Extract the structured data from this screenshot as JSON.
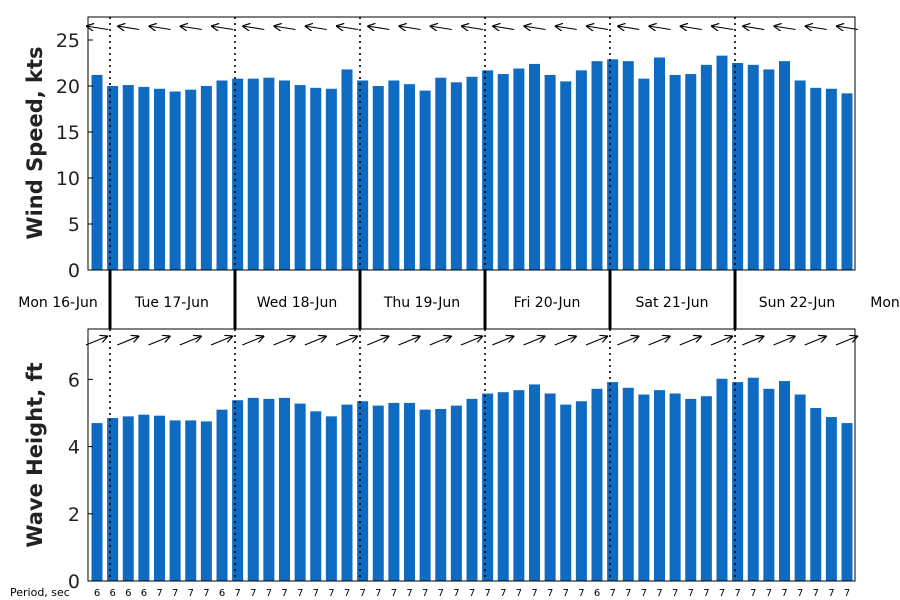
{
  "chart_data": [
    {
      "type": "bar",
      "ylabel": "Wind Speed, kts",
      "ylim": [
        0,
        27.5
      ],
      "yticks": [
        0,
        5,
        10,
        15,
        20,
        25
      ],
      "values": [
        21.2,
        20.0,
        20.1,
        19.9,
        19.7,
        19.4,
        19.6,
        20.0,
        20.6,
        20.8,
        20.8,
        20.9,
        20.6,
        20.1,
        19.8,
        19.7,
        21.8,
        20.6,
        20.0,
        20.6,
        20.2,
        19.5,
        20.9,
        20.4,
        21.0,
        21.7,
        21.3,
        21.9,
        22.4,
        21.2,
        20.5,
        21.7,
        22.7,
        22.9,
        22.7,
        20.8,
        23.1,
        21.2,
        21.3,
        22.3,
        23.3,
        22.5,
        22.3,
        21.8,
        22.7,
        20.6,
        19.8,
        19.7,
        19.2
      ],
      "color": "#0e6bc1",
      "grid": false,
      "wind_direction_arrows": true
    },
    {
      "type": "bar",
      "ylabel": "Wave Height, ft",
      "ylim": [
        0,
        7.5
      ],
      "yticks": [
        0,
        2,
        4,
        6
      ],
      "values": [
        4.7,
        4.85,
        4.9,
        4.95,
        4.92,
        4.78,
        4.78,
        4.75,
        5.1,
        5.38,
        5.45,
        5.42,
        5.45,
        5.28,
        5.05,
        4.9,
        5.25,
        5.35,
        5.22,
        5.3,
        5.3,
        5.1,
        5.12,
        5.22,
        5.42,
        5.58,
        5.62,
        5.68,
        5.85,
        5.58,
        5.25,
        5.35,
        5.72,
        5.92,
        5.75,
        5.55,
        5.68,
        5.58,
        5.42,
        5.5,
        6.02,
        5.92,
        6.05,
        5.72,
        5.95,
        5.55,
        5.15,
        4.88,
        4.7
      ],
      "color": "#0e6bc1",
      "grid": false,
      "wave_direction_arrows": true
    }
  ],
  "day_labels": [
    "Mon 16-Jun",
    "Tue 17-Jun",
    "Wed 18-Jun",
    "Thu 19-Jun",
    "Fri 20-Jun",
    "Sat 21-Jun",
    "Sun 22-Jun",
    "Mon"
  ],
  "period_label": "Period, sec",
  "periods": [
    6,
    6,
    6,
    6,
    7,
    7,
    7,
    7,
    6,
    7,
    7,
    7,
    7,
    7,
    7,
    7,
    7,
    7,
    7,
    7,
    7,
    7,
    7,
    7,
    7,
    7,
    7,
    7,
    7,
    7,
    7,
    7,
    6,
    7,
    7,
    7,
    7,
    7,
    7,
    7,
    7,
    7,
    7,
    7,
    7,
    7,
    7,
    7,
    7
  ]
}
